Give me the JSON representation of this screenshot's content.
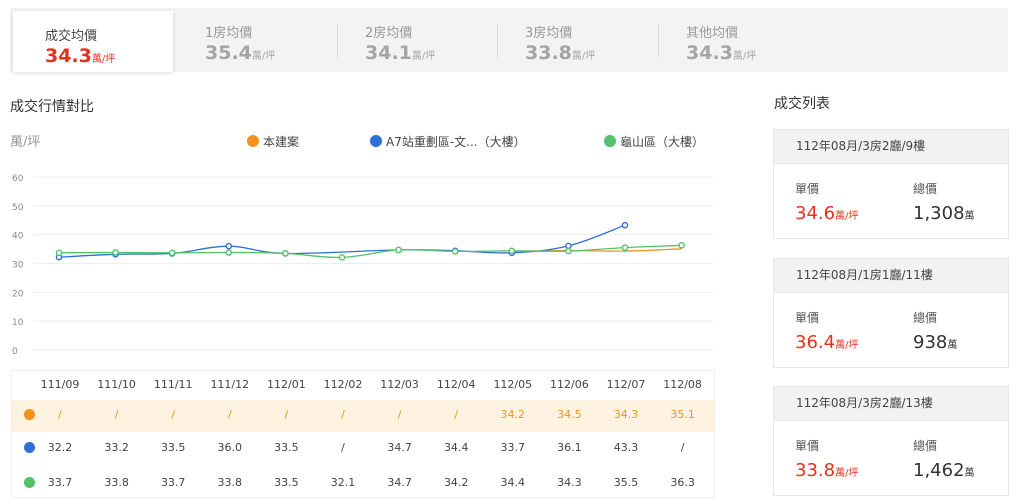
{
  "tabs": [
    {
      "label": "成交均價",
      "value": "34.3",
      "unit": "萬/坪",
      "active": true
    },
    {
      "label": "1房均價",
      "value": "35.4",
      "unit": "萬/坪",
      "active": false
    },
    {
      "label": "2房均價",
      "value": "34.1",
      "unit": "萬/坪",
      "active": false
    },
    {
      "label": "3房均價",
      "value": "33.8",
      "unit": "萬/坪",
      "active": false
    },
    {
      "label": "其他均價",
      "value": "34.3",
      "unit": "萬/坪",
      "active": false
    }
  ],
  "comparison": {
    "title": "成交行情對比",
    "y_unit": "萬/坪"
  },
  "colors": {
    "accent": "#e8301c",
    "series1": "#f5901c",
    "series2": "#2f6fd6",
    "series3": "#52c26a"
  },
  "chart_data": {
    "type": "line",
    "x": [
      "111/09",
      "111/10",
      "111/11",
      "111/12",
      "112/01",
      "112/02",
      "112/03",
      "112/04",
      "112/05",
      "112/06",
      "112/07",
      "112/08"
    ],
    "ylim": [
      0,
      60
    ],
    "yticks": [
      "0",
      "10",
      "20",
      "30",
      "40",
      "50",
      "60"
    ],
    "grid": true,
    "legend_position": "top",
    "series": [
      {
        "name": "本建案",
        "color": "#f5901c",
        "values": [
          null,
          null,
          null,
          null,
          null,
          null,
          null,
          null,
          34.2,
          34.5,
          34.3,
          35.1
        ],
        "labels": [
          "/",
          "/",
          "/",
          "/",
          "/",
          "/",
          "/",
          "/",
          "34.2",
          "34.5",
          "34.3",
          "35.1"
        ]
      },
      {
        "name": "A7站重劃區-文...（大樓）",
        "color": "#2f6fd6",
        "values": [
          32.2,
          33.2,
          33.5,
          36.0,
          33.5,
          null,
          34.7,
          34.4,
          33.7,
          36.1,
          43.3,
          null
        ],
        "labels": [
          "32.2",
          "33.2",
          "33.5",
          "36.0",
          "33.5",
          "/",
          "34.7",
          "34.4",
          "33.7",
          "36.1",
          "43.3",
          "/"
        ]
      },
      {
        "name": "龜山區（大樓）",
        "color": "#52c26a",
        "values": [
          33.7,
          33.8,
          33.7,
          33.8,
          33.5,
          32.1,
          34.7,
          34.2,
          34.4,
          34.3,
          35.5,
          36.3
        ],
        "labels": [
          "33.7",
          "33.8",
          "33.7",
          "33.8",
          "33.5",
          "32.1",
          "34.7",
          "34.2",
          "34.4",
          "34.3",
          "35.5",
          "36.3"
        ]
      }
    ]
  },
  "transactions": {
    "title": "成交列表",
    "unit_price_label": "單價",
    "total_price_label": "總價",
    "items": [
      {
        "heading": "112年08月/3房2廳/9樓",
        "unit_price": "34.6",
        "unit_price_unit": "萬/坪",
        "total_price": "1,308",
        "total_price_unit": "萬"
      },
      {
        "heading": "112年08月/1房1廳/11樓",
        "unit_price": "36.4",
        "unit_price_unit": "萬/坪",
        "total_price": "938",
        "total_price_unit": "萬"
      },
      {
        "heading": "112年08月/3房2廳/13樓",
        "unit_price": "33.8",
        "unit_price_unit": "萬/坪",
        "total_price": "1,462",
        "total_price_unit": "萬"
      }
    ]
  }
}
